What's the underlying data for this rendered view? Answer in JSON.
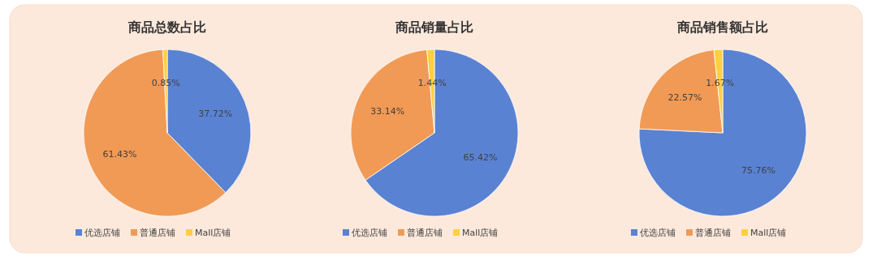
{
  "chart_data": [
    {
      "type": "pie",
      "title": "商品总数占比",
      "categories": [
        "优选店铺",
        "普通店铺",
        "Mall店铺"
      ],
      "values": [
        37.72,
        61.43,
        0.85
      ],
      "value_labels": [
        "37.72%",
        "61.43%",
        "0.85%"
      ],
      "colors": [
        "#5a82d2",
        "#f19a55",
        "#ffcf40"
      ],
      "legend": "bottom"
    },
    {
      "type": "pie",
      "title": "商品销量占比",
      "categories": [
        "优选店铺",
        "普通店铺",
        "Mall店铺"
      ],
      "values": [
        65.42,
        33.14,
        1.44
      ],
      "value_labels": [
        "65.42%",
        "33.14%",
        "1.44%"
      ],
      "colors": [
        "#5a82d2",
        "#f19a55",
        "#ffcf40"
      ],
      "legend": "bottom"
    },
    {
      "type": "pie",
      "title": "商品销售额占比",
      "categories": [
        "优选店铺",
        "普通店铺",
        "Mall店铺"
      ],
      "values": [
        75.76,
        22.57,
        1.67
      ],
      "value_labels": [
        "75.76%",
        "22.57%",
        "1.67%"
      ],
      "colors": [
        "#5a82d2",
        "#f19a55",
        "#ffcf40"
      ],
      "legend": "bottom"
    }
  ]
}
